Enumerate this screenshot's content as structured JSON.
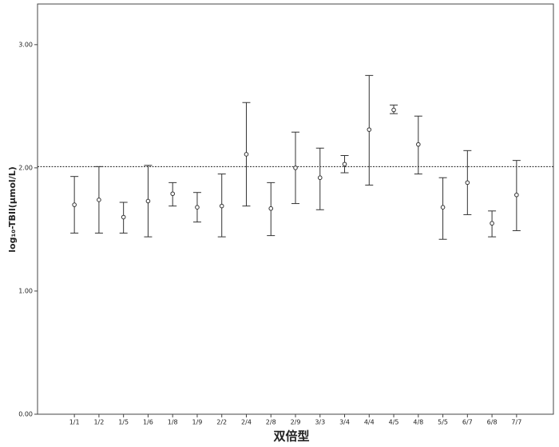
{
  "chart_data": {
    "type": "errorbar",
    "x_label": "双倍型",
    "y_label": "log₁₀-TBIl(μmol/L)",
    "categories": [
      "1/1",
      "1/2",
      "1/5",
      "1/6",
      "1/8",
      "1/9",
      "2/2",
      "2/4",
      "2/8",
      "2/9",
      "3/3",
      "3/4",
      "4/4",
      "4/5",
      "4/8",
      "5/5",
      "6/7",
      "6/8",
      "7/7"
    ],
    "values": [
      1.7,
      1.74,
      1.6,
      1.73,
      1.79,
      1.68,
      1.69,
      2.11,
      1.67,
      2.0,
      1.92,
      2.03,
      2.31,
      2.47,
      2.19,
      1.68,
      1.88,
      1.55,
      1.78
    ],
    "upper": [
      1.93,
      2.01,
      1.72,
      2.02,
      1.88,
      1.8,
      1.95,
      2.53,
      1.88,
      2.29,
      2.16,
      2.1,
      2.75,
      2.51,
      2.42,
      1.92,
      2.14,
      1.65,
      2.06
    ],
    "lower": [
      1.47,
      1.47,
      1.47,
      1.44,
      1.69,
      1.56,
      1.44,
      1.69,
      1.45,
      1.71,
      1.66,
      1.96,
      1.86,
      2.44,
      1.95,
      1.42,
      1.62,
      1.44,
      1.49
    ],
    "reference_line": 2.01,
    "color": "#333333",
    "ylim": [
      0,
      3.33
    ],
    "yticks": [
      {
        "value": 0,
        "label": "0.00"
      },
      {
        "value": 1,
        "label": "1.00"
      },
      {
        "value": 2,
        "label": "2.00"
      },
      {
        "value": 3,
        "label": "3.00"
      }
    ]
  }
}
